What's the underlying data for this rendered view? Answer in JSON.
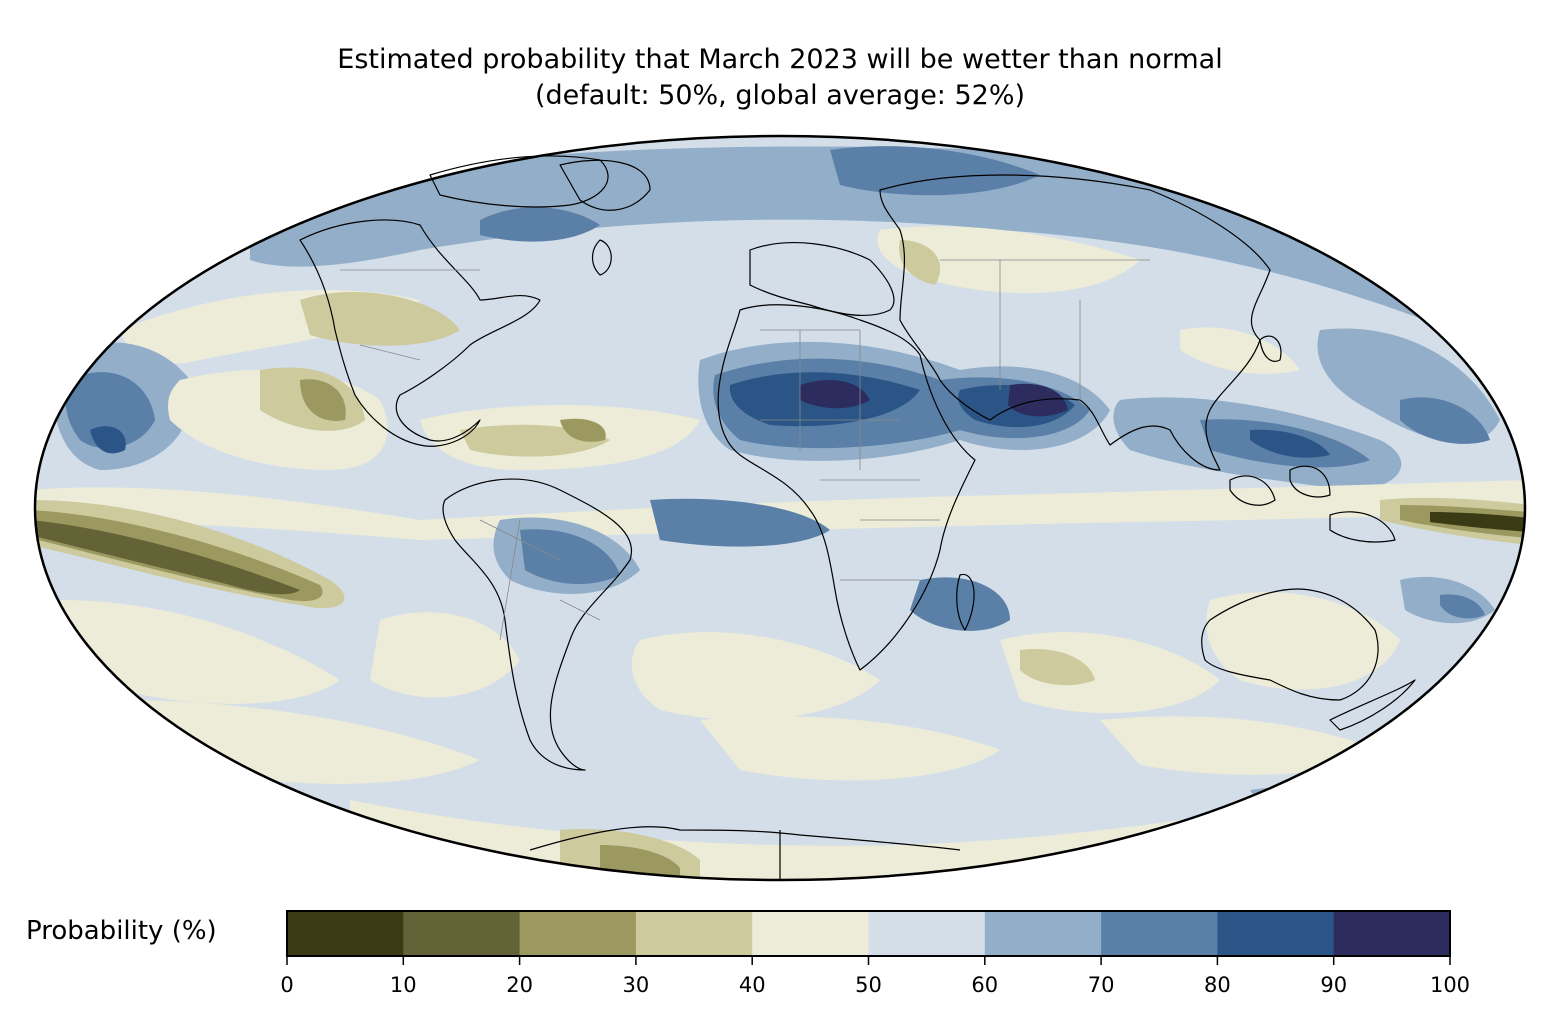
{
  "title": {
    "line1": "Estimated probability that March 2023 will be wetter than normal",
    "line2": "(default: 50%, global average: 52%)"
  },
  "map": {
    "projection": "mollweide",
    "ocean_base_color": "#d3dee9",
    "coastline_color": "#000000",
    "border_color": "#888888"
  },
  "colorbar": {
    "label": "Probability (%)",
    "ticks": [
      "0",
      "10",
      "20",
      "30",
      "40",
      "50",
      "60",
      "70",
      "80",
      "90",
      "100"
    ],
    "colors": [
      "#3a3a14",
      "#646337",
      "#9c9960",
      "#cdcb9e",
      "#ececd9",
      "#d3dee9",
      "#93aec8",
      "#5b80a8",
      "#2c5587",
      "#2c2d5e"
    ]
  }
}
